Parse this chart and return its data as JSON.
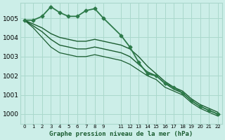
{
  "background_color": "#cceee8",
  "grid_color": "#aad8cc",
  "title": "Graphe pression niveau de la mer (hPa)",
  "xlim": [
    -0.5,
    22.5
  ],
  "ylim": [
    999.5,
    1005.8
  ],
  "yticks": [
    1000,
    1001,
    1002,
    1003,
    1004,
    1005
  ],
  "xticks": [
    0,
    1,
    2,
    3,
    4,
    5,
    6,
    7,
    8,
    9,
    11,
    12,
    13,
    14,
    15,
    16,
    17,
    18,
    19,
    20,
    21,
    22
  ],
  "series": [
    {
      "x": [
        0,
        1,
        2,
        3,
        4,
        5,
        6,
        7,
        8,
        9,
        11,
        12,
        13,
        14,
        15,
        16,
        17,
        18,
        19,
        20,
        21,
        22
      ],
      "y": [
        1004.9,
        1004.9,
        1005.1,
        1005.6,
        1005.3,
        1005.1,
        1005.1,
        1005.4,
        1005.5,
        1005.0,
        1004.1,
        1003.5,
        1002.7,
        1002.1,
        1002.0,
        1001.6,
        1001.4,
        1001.1,
        1000.7,
        1000.4,
        1000.2,
        1000.0
      ],
      "color": "#2d7a4a",
      "lw": 1.3,
      "marker": "D",
      "ms": 2.5,
      "zorder": 5
    },
    {
      "x": [
        0,
        1,
        2,
        3,
        4,
        5,
        6,
        7,
        8,
        9,
        11,
        12,
        13,
        14,
        15,
        16,
        17,
        18,
        19,
        20,
        21,
        22
      ],
      "y": [
        1004.9,
        1004.7,
        1004.5,
        1004.2,
        1004.0,
        1003.9,
        1003.8,
        1003.8,
        1003.9,
        1003.8,
        1003.6,
        1003.4,
        1003.0,
        1002.5,
        1002.1,
        1001.7,
        1001.4,
        1001.2,
        1000.8,
        1000.5,
        1000.3,
        1000.1
      ],
      "color": "#1a5c30",
      "lw": 1.0,
      "marker": null,
      "ms": 0,
      "zorder": 3
    },
    {
      "x": [
        0,
        1,
        2,
        3,
        4,
        5,
        6,
        7,
        8,
        9,
        11,
        12,
        13,
        14,
        15,
        16,
        17,
        18,
        19,
        20,
        21,
        22
      ],
      "y": [
        1004.9,
        1004.6,
        1004.3,
        1003.9,
        1003.6,
        1003.5,
        1003.4,
        1003.4,
        1003.5,
        1003.4,
        1003.2,
        1003.0,
        1002.6,
        1002.2,
        1002.0,
        1001.6,
        1001.3,
        1001.1,
        1000.7,
        1000.4,
        1000.2,
        1000.0
      ],
      "color": "#1a5c30",
      "lw": 1.0,
      "marker": null,
      "ms": 0,
      "zorder": 3
    },
    {
      "x": [
        0,
        1,
        2,
        3,
        4,
        5,
        6,
        7,
        8,
        9,
        11,
        12,
        13,
        14,
        15,
        16,
        17,
        18,
        19,
        20,
        21,
        22
      ],
      "y": [
        1004.9,
        1004.5,
        1004.0,
        1003.5,
        1003.2,
        1003.1,
        1003.0,
        1003.0,
        1003.1,
        1003.0,
        1002.8,
        1002.6,
        1002.3,
        1002.0,
        1001.8,
        1001.4,
        1001.2,
        1001.0,
        1000.6,
        1000.3,
        1000.1,
        999.9
      ],
      "color": "#1a5c30",
      "lw": 0.9,
      "marker": null,
      "ms": 0,
      "zorder": 2
    }
  ]
}
